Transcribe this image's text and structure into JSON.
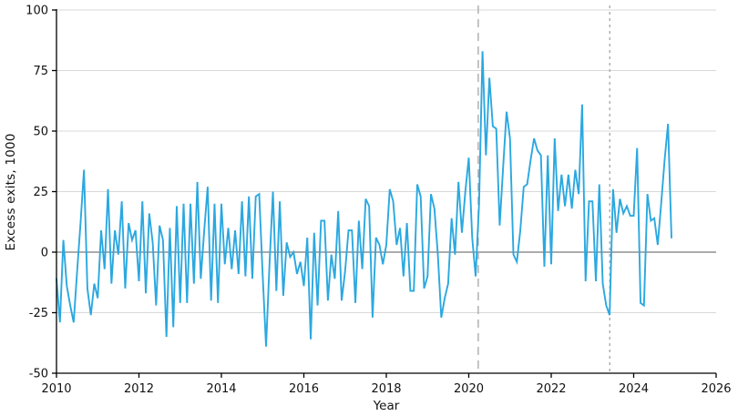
{
  "chart_data": {
    "type": "line",
    "title": "",
    "xlabel": "Year",
    "ylabel": "Excess exits, 1000",
    "xlim": [
      2010,
      2026
    ],
    "ylim": [
      -50,
      100
    ],
    "x_ticks": [
      2010,
      2012,
      2014,
      2016,
      2018,
      2020,
      2022,
      2024,
      2026
    ],
    "y_ticks": [
      -50,
      -25,
      0,
      25,
      50,
      75,
      100
    ],
    "grid": true,
    "legend_position": "none",
    "line_color": "#2ba8e0",
    "grid_color": "#d9d9d9",
    "zero_line_color": "#595959",
    "axis_color": "#000000",
    "ref_line_color": "#ababab",
    "zero_line": true,
    "reference_lines": [
      {
        "x": 2020.23,
        "style": "long-dash"
      },
      {
        "x": 2023.42,
        "style": "short-dash"
      }
    ],
    "series": [
      {
        "name": "Excess exits",
        "start_year": 2010,
        "frequency": "monthly",
        "values": [
          -11,
          -29,
          5,
          -14,
          -22,
          -29,
          -8,
          12,
          34,
          -15,
          -26,
          -13,
          -19,
          9,
          -7,
          26,
          -13,
          9,
          -1,
          21,
          -15,
          12,
          5,
          9,
          -12,
          21,
          -17,
          16,
          4,
          -22,
          11,
          5,
          -35,
          10,
          -31,
          19,
          -21,
          20,
          -21,
          20,
          -13,
          29,
          -11,
          9,
          27,
          -20,
          20,
          -21,
          20,
          -5,
          10,
          -7,
          9,
          -9,
          21,
          -10,
          23,
          -11,
          23,
          24,
          -9,
          -39,
          -5,
          25,
          -16,
          21,
          -18,
          4,
          -2,
          0,
          -9,
          -4,
          -14,
          6,
          -36,
          8,
          -22,
          13,
          13,
          -20,
          -1,
          -11,
          17,
          -20,
          -8,
          9,
          9,
          -21,
          13,
          -7,
          22,
          19,
          -27,
          6,
          3,
          -5,
          3,
          26,
          21,
          3,
          10,
          -10,
          12,
          -16,
          -16,
          28,
          23,
          -15,
          -10,
          24,
          18,
          -1,
          -27,
          -19,
          -13,
          14,
          -1,
          29,
          8,
          25,
          39,
          6,
          -10,
          20,
          83,
          40,
          72,
          52,
          51,
          11,
          35,
          58,
          47,
          -1,
          -4,
          9,
          27,
          28,
          38,
          47,
          42,
          40,
          -6,
          40,
          -5,
          47,
          17,
          32,
          19,
          32,
          18,
          34,
          24,
          61,
          -12,
          21,
          21,
          -12,
          28,
          -13,
          -22,
          -26,
          26,
          8,
          22,
          16,
          19,
          15,
          15,
          43,
          -21,
          -22,
          24,
          13,
          14,
          3,
          20,
          38,
          53,
          6
        ]
      }
    ]
  }
}
